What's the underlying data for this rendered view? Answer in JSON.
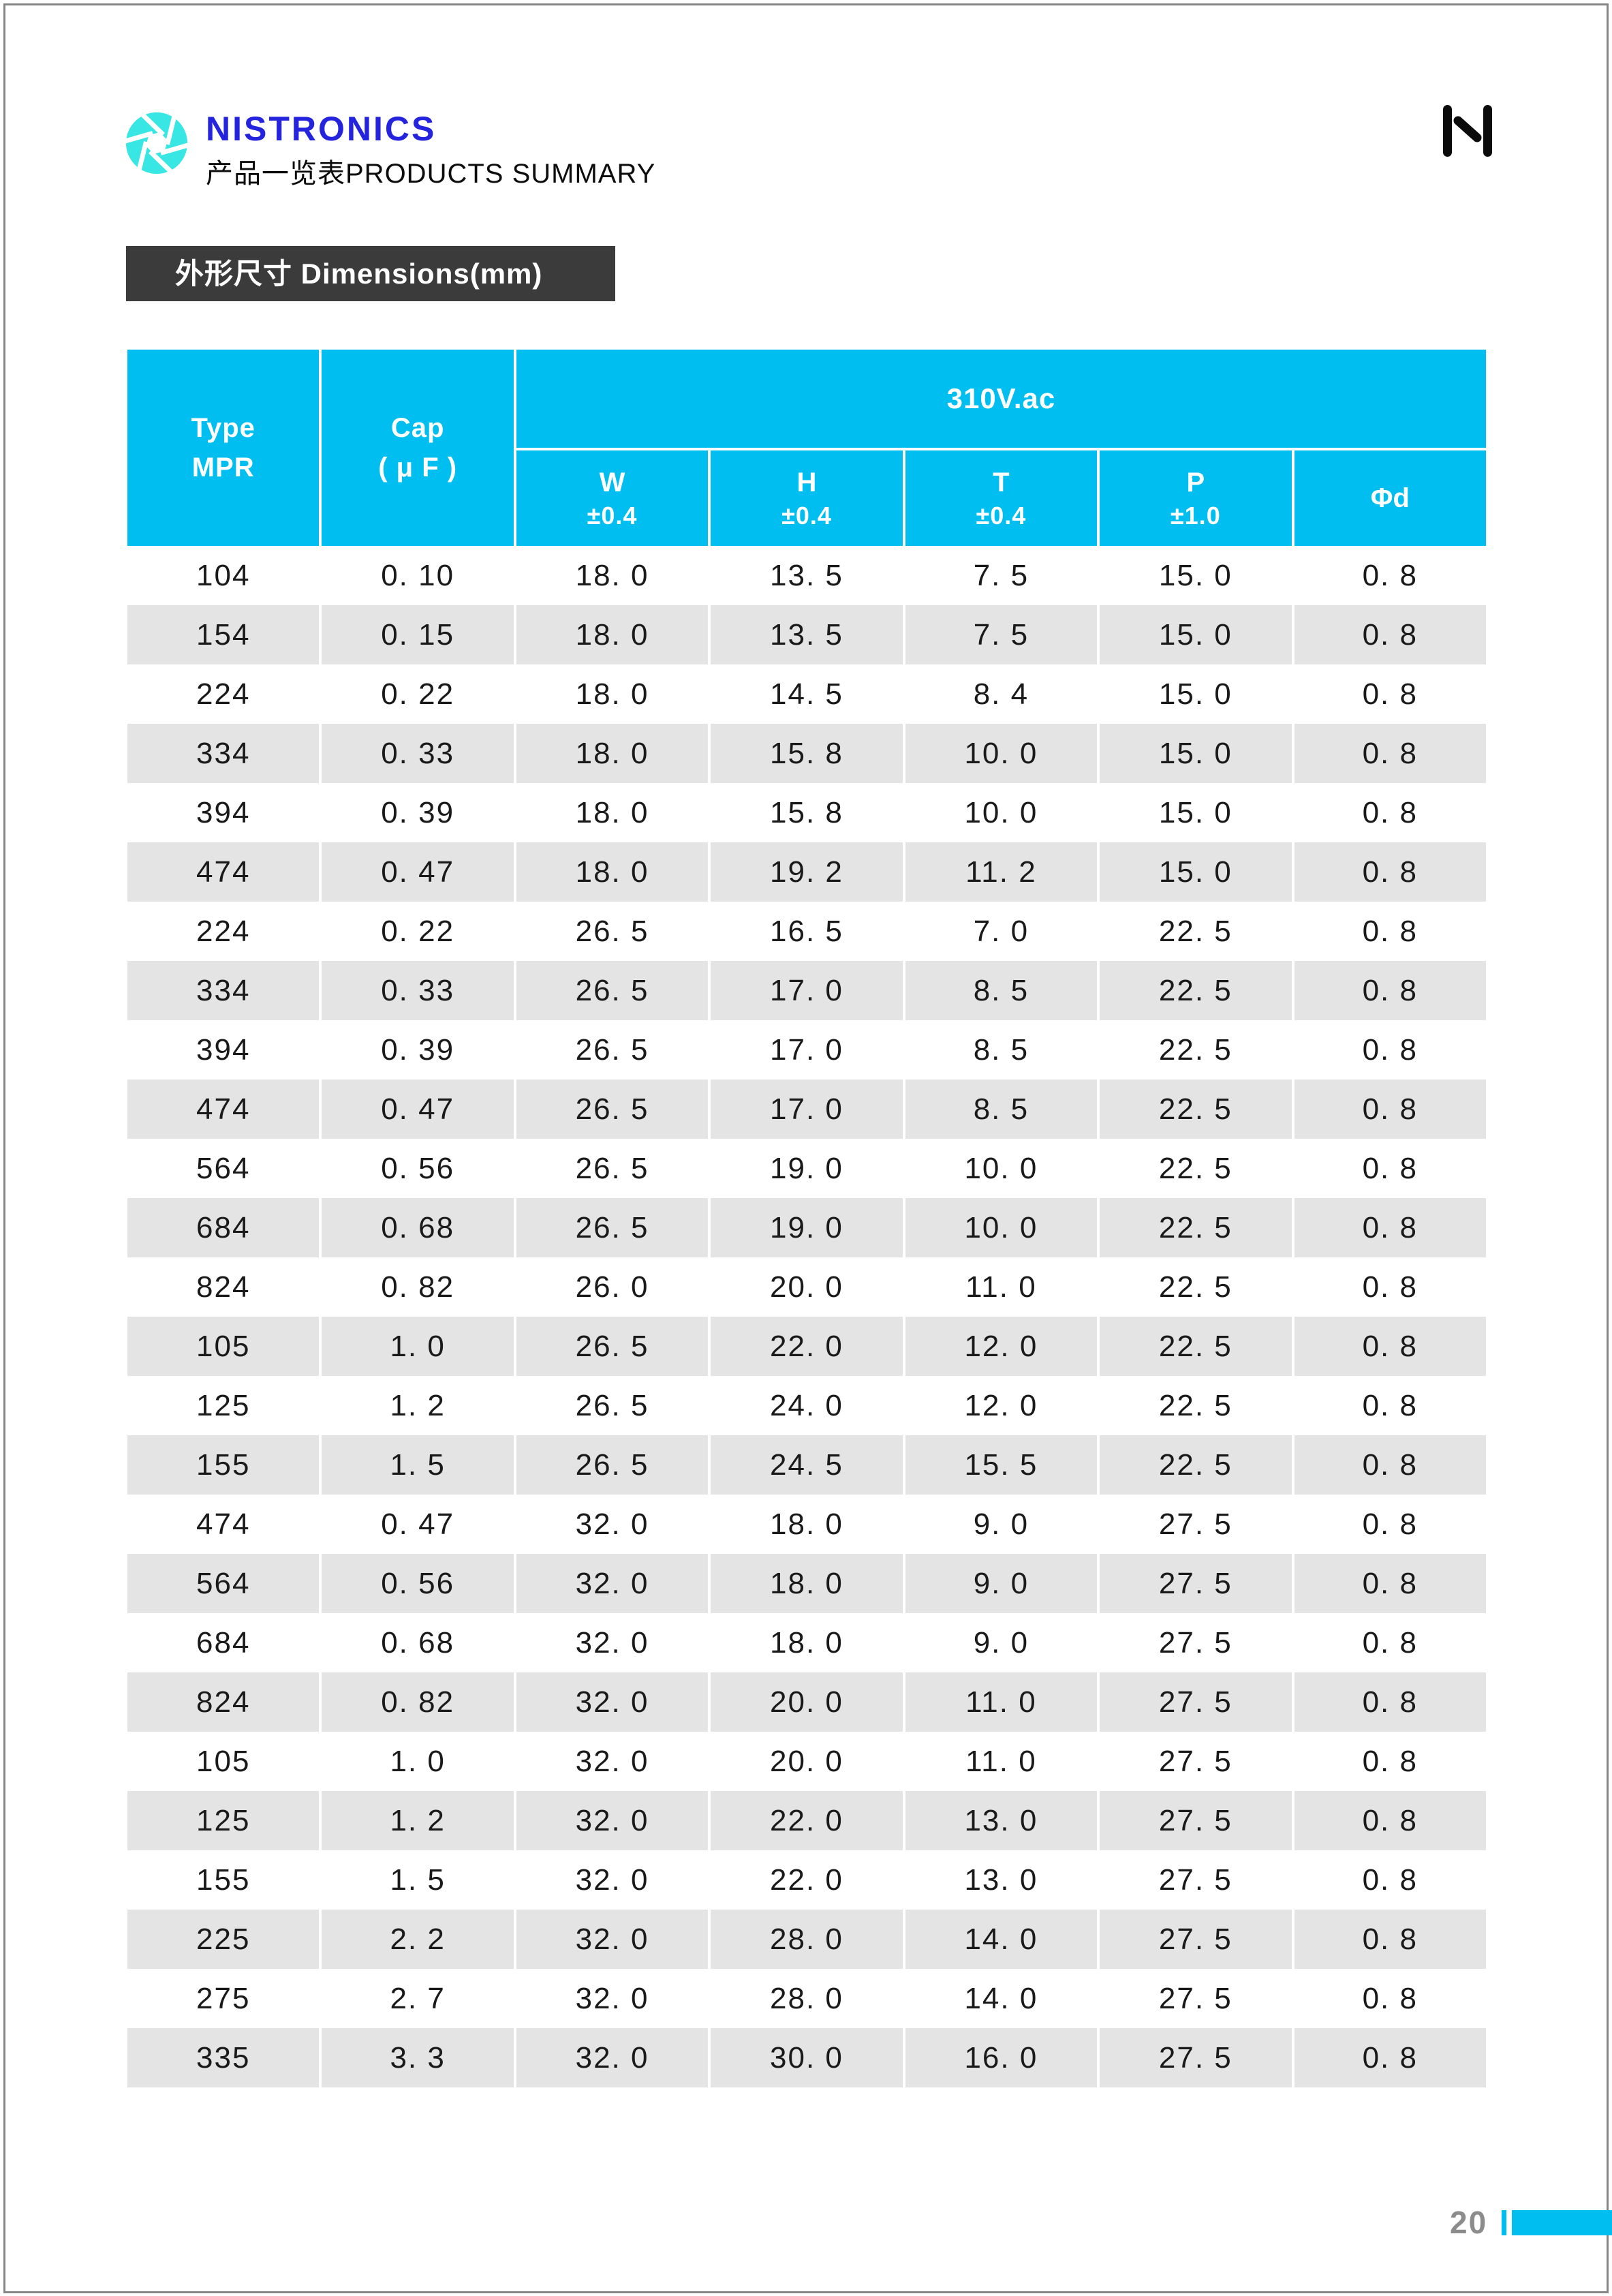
{
  "colors": {
    "accent_cyan": "#00bff0",
    "logo_cyan": "#38e6e4",
    "logo_blue": "#2424df",
    "title_bar_bg": "#3b3b3b",
    "row_stripe": "#e4e4e4",
    "page_number_gray": "#8c8c8c",
    "border_gray": "#868686"
  },
  "header": {
    "brand": "NISTRONICS",
    "subtitle": "产品一览表PRODUCTS SUMMARY"
  },
  "section": {
    "title": "外形尺寸 Dimensions(mm)"
  },
  "table": {
    "header": {
      "type": [
        "Type",
        "MPR"
      ],
      "cap": [
        "Cap",
        "( μ F )"
      ],
      "voltage_span": "310V.ac",
      "sub_columns": [
        [
          "W",
          "±0.4"
        ],
        [
          "H",
          "±0.4"
        ],
        [
          "T",
          "±0.4"
        ],
        [
          "P",
          "±1.0"
        ],
        [
          "Φd",
          ""
        ]
      ]
    },
    "rows": [
      [
        "104",
        "0. 10",
        "18. 0",
        "13. 5",
        "7. 5",
        "15. 0",
        "0. 8"
      ],
      [
        "154",
        "0. 15",
        "18. 0",
        "13. 5",
        "7. 5",
        "15. 0",
        "0. 8"
      ],
      [
        "224",
        "0. 22",
        "18. 0",
        "14. 5",
        "8. 4",
        "15. 0",
        "0. 8"
      ],
      [
        "334",
        "0. 33",
        "18. 0",
        "15. 8",
        "10. 0",
        "15. 0",
        "0. 8"
      ],
      [
        "394",
        "0. 39",
        "18. 0",
        "15. 8",
        "10. 0",
        "15. 0",
        "0. 8"
      ],
      [
        "474",
        "0. 47",
        "18. 0",
        "19. 2",
        "11. 2",
        "15. 0",
        "0. 8"
      ],
      [
        "224",
        "0. 22",
        "26. 5",
        "16. 5",
        "7. 0",
        "22. 5",
        "0. 8"
      ],
      [
        "334",
        "0. 33",
        "26. 5",
        "17. 0",
        "8. 5",
        "22. 5",
        "0. 8"
      ],
      [
        "394",
        "0. 39",
        "26. 5",
        "17. 0",
        "8. 5",
        "22. 5",
        "0. 8"
      ],
      [
        "474",
        "0. 47",
        "26. 5",
        "17. 0",
        "8. 5",
        "22. 5",
        "0. 8"
      ],
      [
        "564",
        "0. 56",
        "26. 5",
        "19. 0",
        "10. 0",
        "22. 5",
        "0. 8"
      ],
      [
        "684",
        "0. 68",
        "26. 5",
        "19. 0",
        "10. 0",
        "22. 5",
        "0. 8"
      ],
      [
        "824",
        "0. 82",
        "26. 0",
        "20. 0",
        "11. 0",
        "22. 5",
        "0. 8"
      ],
      [
        "105",
        "1. 0",
        "26. 5",
        "22. 0",
        "12. 0",
        "22. 5",
        "0. 8"
      ],
      [
        "125",
        "1. 2",
        "26. 5",
        "24. 0",
        "12. 0",
        "22. 5",
        "0. 8"
      ],
      [
        "155",
        "1. 5",
        "26. 5",
        "24. 5",
        "15. 5",
        "22. 5",
        "0. 8"
      ],
      [
        "474",
        "0. 47",
        "32. 0",
        "18. 0",
        "9. 0",
        "27. 5",
        "0. 8"
      ],
      [
        "564",
        "0. 56",
        "32. 0",
        "18. 0",
        "9. 0",
        "27. 5",
        "0. 8"
      ],
      [
        "684",
        "0. 68",
        "32. 0",
        "18. 0",
        "9. 0",
        "27. 5",
        "0. 8"
      ],
      [
        "824",
        "0. 82",
        "32. 0",
        "20. 0",
        "11. 0",
        "27. 5",
        "0. 8"
      ],
      [
        "105",
        "1. 0",
        "32. 0",
        "20. 0",
        "11. 0",
        "27. 5",
        "0. 8"
      ],
      [
        "125",
        "1. 2",
        "32. 0",
        "22. 0",
        "13. 0",
        "27. 5",
        "0. 8"
      ],
      [
        "155",
        "1. 5",
        "32. 0",
        "22. 0",
        "13. 0",
        "27. 5",
        "0. 8"
      ],
      [
        "225",
        "2. 2",
        "32. 0",
        "28. 0",
        "14. 0",
        "27. 5",
        "0. 8"
      ],
      [
        "275",
        "2. 7",
        "32. 0",
        "28. 0",
        "14. 0",
        "27. 5",
        "0. 8"
      ],
      [
        "335",
        "3. 3",
        "32. 0",
        "30. 0",
        "16. 0",
        "27. 5",
        "0. 8"
      ]
    ]
  },
  "footer": {
    "page_number": "20"
  }
}
